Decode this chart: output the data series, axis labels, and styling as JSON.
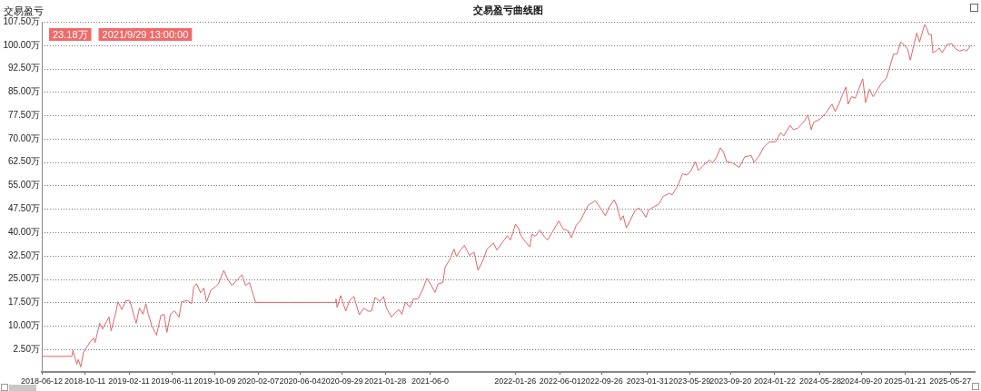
{
  "chart_data": {
    "type": "line",
    "title": "交易盈亏曲线图",
    "ylabel": "交易盈亏",
    "xlim": [
      "2018-06-12",
      "2025-08-03"
    ],
    "ylim": [
      -4.8,
      107.5
    ],
    "xticks": [
      "2018-06-12",
      "2018-10-11",
      "2019-02-11",
      "2019-06-11",
      "2019-10-09",
      "2020-02-07",
      "2020-06-04",
      "2020-09-29",
      "2021-01-28",
      {
        "value": "2021-06-02",
        "label": "2021-06-0"
      },
      "2022-01-26",
      "2022-06-01",
      "2022-09-26",
      "2023-01-31",
      "2023-05-29",
      "2023-09-20",
      "2024-01-22",
      "2024-05-28",
      "2024-09-20",
      "2025-01-21",
      "2025-05-27"
    ],
    "yticks": [
      {
        "value": 2.5,
        "label": "2.50万"
      },
      {
        "value": 10,
        "label": "10.00万"
      },
      {
        "value": 17.5,
        "label": "17.50万"
      },
      {
        "value": 25,
        "label": "25.00万"
      },
      {
        "value": 32.5,
        "label": "32.50万"
      },
      {
        "value": 40,
        "label": "40.00万"
      },
      {
        "value": 47.5,
        "label": "47.50万"
      },
      {
        "value": 55,
        "label": "55.00万"
      },
      {
        "value": 62.5,
        "label": "62.50万"
      },
      {
        "value": 70,
        "label": "70.00万"
      },
      {
        "value": 77.5,
        "label": "77.50万"
      },
      {
        "value": 85,
        "label": "85.00万"
      },
      {
        "value": 92.5,
        "label": "92.50万"
      },
      {
        "value": 100,
        "label": "100.00万"
      },
      {
        "value": 107.5,
        "label": "107.50万"
      }
    ],
    "grid": "y",
    "legend": false,
    "marker": "none",
    "line_style": "solid",
    "annotations": [
      "23.18万",
      "2021/9/29 13:00:00"
    ],
    "series": [
      {
        "color": "#e06666",
        "x": [
          "2018-06-12",
          "2018-09-04",
          "2018-09-07",
          "2018-09-18",
          "2018-09-22",
          "2018-09-29",
          "2018-10-07",
          "2018-10-26",
          "2018-11-04",
          "2018-11-08",
          "2018-11-21",
          "2018-11-29",
          "2018-12-17",
          "2018-12-23",
          "2019-01-04",
          "2019-01-11",
          "2019-01-22",
          "2019-02-02",
          "2019-02-13",
          "2019-03-03",
          "2019-03-12",
          "2019-03-22",
          "2019-03-30",
          "2019-04-06",
          "2019-04-16",
          "2019-04-29",
          "2019-05-11",
          "2019-05-20",
          "2019-05-28",
          "2019-06-07",
          "2019-06-18",
          "2019-07-01",
          "2019-07-08",
          "2019-07-25",
          "2019-08-05",
          "2019-08-11",
          "2019-08-19",
          "2019-08-30",
          "2019-09-08",
          "2019-09-16",
          "2019-09-28",
          "2019-10-11",
          "2019-10-19",
          "2019-11-03",
          "2019-11-14",
          "2019-11-26",
          "2019-12-12",
          "2019-12-24",
          "2020-01-03",
          "2020-01-14",
          "2020-01-20",
          "2020-01-31",
          "2020-09-10",
          "2020-09-12",
          "2020-09-15",
          "2020-09-25",
          "2020-10-09",
          "2020-10-20",
          "2020-11-01",
          "2020-11-16",
          "2020-11-29",
          "2020-12-10",
          "2020-12-20",
          "2020-12-30",
          "2021-01-13",
          "2021-01-23",
          "2021-01-31",
          "2021-02-14",
          "2021-02-25",
          "2021-03-07",
          "2021-03-15",
          "2021-03-25",
          "2021-04-07",
          "2021-04-16",
          "2021-04-29",
          "2021-05-12",
          "2021-05-24",
          "2021-06-03",
          "2021-06-16",
          "2021-06-24",
          "2021-07-08",
          "2021-07-14",
          "2021-07-27",
          "2021-08-08",
          "2021-08-15",
          "2021-08-25",
          "2021-09-06",
          "2021-09-20",
          "2021-10-03",
          "2021-10-14",
          "2021-10-29",
          "2021-11-08",
          "2021-11-26",
          "2021-12-06",
          "2021-12-23",
          "2022-01-04",
          "2022-01-13",
          "2022-01-27",
          "2022-02-05",
          "2022-02-11",
          "2022-02-23",
          "2022-03-08",
          "2022-03-14",
          "2022-03-23",
          "2022-04-05",
          "2022-04-18",
          "2022-04-27",
          "2022-05-10",
          "2022-05-28",
          "2022-06-09",
          "2022-06-24",
          "2022-07-02",
          "2022-07-16",
          "2022-07-28",
          "2022-08-05",
          "2022-08-18",
          "2022-09-07",
          "2022-09-19",
          "2022-10-05",
          "2022-10-15",
          "2022-10-30",
          "2022-11-06",
          "2022-11-17",
          "2022-11-24",
          "2022-12-03",
          "2022-12-14",
          "2022-12-28",
          "2023-01-07",
          "2023-01-16",
          "2023-01-27",
          "2023-02-03",
          "2023-02-19",
          "2023-03-04",
          "2023-03-16",
          "2023-04-02",
          "2023-04-10",
          "2023-04-26",
          "2023-05-09",
          "2023-05-21",
          "2023-06-02",
          "2023-06-14",
          "2023-06-22",
          "2023-07-08",
          "2023-07-24",
          "2023-08-01",
          "2023-08-13",
          "2023-08-23",
          "2023-09-01",
          "2023-09-09",
          "2023-09-26",
          "2023-10-15",
          "2023-10-30",
          "2023-11-17",
          "2023-11-25",
          "2023-12-08",
          "2023-12-21",
          "2024-01-07",
          "2024-01-25",
          "2024-02-07",
          "2024-02-16",
          "2024-03-05",
          "2024-03-14",
          "2024-03-27",
          "2024-04-15",
          "2024-04-24",
          "2024-05-03",
          "2024-05-10",
          "2024-05-28",
          "2024-06-13",
          "2024-06-30",
          "2024-07-09",
          "2024-07-21",
          "2024-07-29",
          "2024-08-08",
          "2024-08-14",
          "2024-08-24",
          "2024-09-03",
          "2024-09-13",
          "2024-09-24",
          "2024-10-02",
          "2024-10-13",
          "2024-10-23",
          "2024-11-03",
          "2024-11-16",
          "2024-11-29",
          "2024-12-07",
          "2024-12-19",
          "2024-12-29",
          "2025-01-08",
          "2025-01-19",
          "2025-01-28",
          "2025-02-04",
          "2025-02-14",
          "2025-02-22",
          "2025-03-02",
          "2025-03-16",
          "2025-03-22",
          "2025-03-28",
          "2025-04-04",
          "2025-04-08",
          "2025-04-17",
          "2025-04-26",
          "2025-05-04",
          "2025-05-18",
          "2025-05-31",
          "2025-06-10",
          "2025-06-22",
          "2025-07-05",
          "2025-07-12",
          "2025-07-23"
        ],
        "values": [
          0.2,
          0.2,
          2.1,
          -2.3,
          -0.8,
          -3.2,
          1.6,
          5.0,
          6.1,
          4.6,
          10.8,
          9.0,
          12.8,
          8.4,
          13.7,
          17.7,
          15.2,
          18.1,
          18.1,
          10.8,
          15.7,
          13.7,
          17.1,
          13.7,
          9.9,
          7.0,
          13.3,
          13.7,
          7.9,
          13.7,
          14.8,
          12.8,
          17.7,
          18.1,
          17.1,
          22.5,
          23.5,
          20.6,
          22.1,
          17.7,
          21.5,
          22.5,
          23.4,
          27.8,
          24.9,
          22.9,
          24.9,
          26.4,
          22.9,
          23.9,
          21.5,
          17.5,
          17.5,
          18.6,
          15.9,
          19.7,
          14.7,
          18.1,
          19.4,
          13.5,
          15.7,
          14.7,
          14.7,
          19.1,
          17.8,
          19.4,
          15.7,
          12.8,
          14.2,
          15.2,
          13.7,
          17.6,
          15.9,
          18.6,
          18.6,
          21.5,
          25.2,
          23.4,
          20.7,
          23.4,
          23.9,
          28.8,
          31.2,
          34.6,
          32.2,
          34.1,
          35.8,
          32.6,
          33.6,
          27.8,
          31.2,
          34.6,
          36.5,
          34.3,
          37.0,
          38.9,
          37.5,
          42.6,
          41.1,
          38.9,
          37.0,
          35.3,
          39.4,
          38.7,
          40.7,
          38.5,
          37.5,
          40.1,
          43.6,
          41.1,
          40.4,
          38.2,
          42.3,
          43.8,
          45.7,
          48.6,
          50.1,
          48.2,
          45.3,
          47.9,
          50.4,
          48.6,
          43.8,
          45.3,
          41.4,
          43.8,
          47.2,
          47.7,
          46.7,
          44.8,
          47.2,
          48.2,
          49.1,
          51.5,
          52.5,
          52.0,
          54.9,
          58.8,
          58.3,
          59.8,
          62.7,
          59.8,
          61.7,
          63.2,
          62.2,
          64.2,
          67.1,
          65.6,
          62.7,
          62.2,
          60.8,
          64.2,
          64.6,
          62.4,
          64.2,
          67.1,
          69.0,
          69.0,
          71.9,
          70.9,
          74.3,
          72.9,
          73.4,
          75.8,
          77.7,
          72.9,
          75.3,
          76.3,
          78.2,
          81.1,
          78.7,
          81.6,
          84.0,
          86.6,
          81.1,
          83.5,
          83.0,
          85.9,
          89.2,
          81.6,
          85.9,
          83.5,
          85.5,
          87.9,
          89.4,
          92.3,
          97.1,
          97.1,
          101.0,
          100.0,
          98.6,
          95.2,
          100.0,
          103.9,
          101.0,
          106.6,
          105.4,
          103.4,
          103.4,
          97.6,
          98.1,
          99.1,
          97.6,
          100.2,
          100.5,
          98.9,
          98.1,
          98.6,
          98.1,
          100.0
        ]
      }
    ]
  }
}
